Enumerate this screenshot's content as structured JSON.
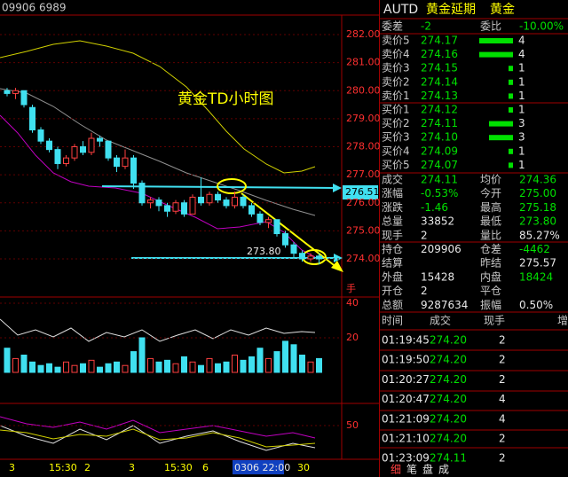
{
  "header": {
    "code": "09906 6989"
  },
  "chart": {
    "title": "黄金TD小时图",
    "yticks": [
      {
        "value": 282,
        "label": "282.00"
      },
      {
        "value": 281,
        "label": "281.00"
      },
      {
        "value": 280,
        "label": "280.00"
      },
      {
        "value": 279,
        "label": "279.00"
      },
      {
        "value": 278,
        "label": "278.00"
      },
      {
        "value": 277,
        "label": "277.00"
      },
      {
        "value": 276,
        "label": "276.00"
      },
      {
        "value": 275,
        "label": "275.00"
      },
      {
        "value": 274,
        "label": "274.00"
      }
    ],
    "candles": [
      {
        "open": 280.0,
        "close": 279.9,
        "high": 280.1,
        "low": 279.8
      },
      {
        "open": 279.9,
        "close": 280.0,
        "high": 280.1,
        "low": 279.7
      },
      {
        "open": 280.0,
        "close": 279.5,
        "high": 280.0,
        "low": 279.4
      },
      {
        "open": 279.4,
        "close": 278.6,
        "high": 279.5,
        "low": 278.5
      },
      {
        "open": 278.6,
        "close": 278.2,
        "high": 278.7,
        "low": 278.1
      },
      {
        "open": 278.2,
        "close": 277.9,
        "high": 278.3,
        "low": 277.8
      },
      {
        "open": 277.9,
        "close": 277.4,
        "high": 278.0,
        "low": 277.2
      },
      {
        "open": 277.4,
        "close": 277.6,
        "high": 277.7,
        "low": 277.3
      },
      {
        "open": 277.6,
        "close": 278.0,
        "high": 278.1,
        "low": 277.5
      },
      {
        "open": 278.0,
        "close": 277.8,
        "high": 278.2,
        "low": 277.7
      },
      {
        "open": 277.8,
        "close": 278.3,
        "high": 278.5,
        "low": 277.7
      },
      {
        "open": 278.3,
        "close": 278.2,
        "high": 278.4,
        "low": 278.0
      },
      {
        "open": 278.2,
        "close": 277.6,
        "high": 278.2,
        "low": 277.5
      },
      {
        "open": 277.6,
        "close": 277.3,
        "high": 277.7,
        "low": 277.1
      },
      {
        "open": 277.3,
        "close": 277.6,
        "high": 277.9,
        "low": 277.2
      },
      {
        "open": 277.6,
        "close": 276.7,
        "high": 277.7,
        "low": 276.5
      },
      {
        "open": 276.7,
        "close": 276.0,
        "high": 276.8,
        "low": 275.9
      },
      {
        "open": 276.0,
        "close": 276.1,
        "high": 276.2,
        "low": 275.8
      },
      {
        "open": 276.1,
        "close": 275.9,
        "high": 276.2,
        "low": 275.7
      },
      {
        "open": 275.9,
        "close": 275.7,
        "high": 276.0,
        "low": 275.5
      },
      {
        "open": 275.7,
        "close": 276.0,
        "high": 276.1,
        "low": 275.6
      },
      {
        "open": 276.0,
        "close": 275.6,
        "high": 276.1,
        "low": 275.5
      },
      {
        "open": 275.6,
        "close": 276.2,
        "high": 276.3,
        "low": 275.6
      },
      {
        "open": 276.2,
        "close": 276.0,
        "high": 276.9,
        "low": 275.9
      },
      {
        "open": 276.0,
        "close": 276.3,
        "high": 276.4,
        "low": 275.9
      },
      {
        "open": 276.3,
        "close": 276.1,
        "high": 276.4,
        "low": 276.0
      },
      {
        "open": 276.1,
        "close": 275.9,
        "high": 276.2,
        "low": 275.8
      },
      {
        "open": 275.9,
        "close": 276.2,
        "high": 276.4,
        "low": 275.8
      },
      {
        "open": 276.2,
        "close": 275.9,
        "high": 276.3,
        "low": 275.8
      },
      {
        "open": 275.9,
        "close": 275.6,
        "high": 276.0,
        "low": 275.5
      },
      {
        "open": 275.6,
        "close": 275.3,
        "high": 275.7,
        "low": 275.2
      },
      {
        "open": 275.3,
        "close": 275.4,
        "high": 275.5,
        "low": 275.1
      },
      {
        "open": 275.4,
        "close": 274.9,
        "high": 275.4,
        "low": 274.8
      },
      {
        "open": 274.9,
        "close": 274.5,
        "high": 275.0,
        "low": 274.4
      },
      {
        "open": 274.5,
        "close": 274.2,
        "high": 274.6,
        "low": 274.0
      },
      {
        "open": 274.2,
        "close": 274.0,
        "high": 274.3,
        "low": 273.9
      },
      {
        "open": 274.0,
        "close": 274.1,
        "high": 274.2,
        "low": 273.9
      },
      {
        "open": 274.1,
        "close": 274.0,
        "high": 274.2,
        "low": 273.8
      }
    ],
    "volume_unit": "手",
    "volume_ticks": [
      40,
      20
    ],
    "volumes": [
      14,
      8,
      10,
      6,
      4,
      5,
      3,
      6,
      4,
      5,
      7,
      3,
      5,
      6,
      4,
      12,
      20,
      8,
      6,
      7,
      5,
      9,
      6,
      4,
      8,
      5,
      6,
      10,
      7,
      9,
      14,
      8,
      12,
      18,
      16,
      10,
      6,
      8
    ],
    "indicator_ticks": [
      50
    ],
    "annotations": [
      "276.51",
      "273.80"
    ],
    "xlabels": [
      "3",
      "15:30",
      "2",
      "3",
      "15:30",
      "6",
      "0306 22:00",
      "30"
    ]
  },
  "quote": {
    "symbol": "AUTD",
    "name": "黄金延期",
    "alias": "黄金",
    "wei_cha": {
      "label": "委差",
      "value": "-2"
    },
    "wei_bi": {
      "label": "委比",
      "value": "-10.00%"
    },
    "asks": [
      {
        "label": "卖价5",
        "price": "274.17",
        "volume": 4
      },
      {
        "label": "卖价4",
        "price": "274.16",
        "volume": 4
      },
      {
        "label": "卖价3",
        "price": "274.15",
        "volume": 1
      },
      {
        "label": "卖价2",
        "price": "274.14",
        "volume": 1
      },
      {
        "label": "卖价1",
        "price": "274.13",
        "volume": 1
      }
    ],
    "bids": [
      {
        "label": "买价1",
        "price": "274.12",
        "volume": 1
      },
      {
        "label": "买价2",
        "price": "274.11",
        "volume": 3
      },
      {
        "label": "买价3",
        "price": "274.10",
        "volume": 3
      },
      {
        "label": "买价4",
        "price": "274.09",
        "volume": 1
      },
      {
        "label": "买价5",
        "price": "274.07",
        "volume": 1
      }
    ],
    "stats": [
      [
        "成交",
        "274.11",
        "均价",
        "274.36"
      ],
      [
        "涨幅",
        "-0.53%",
        "今开",
        "275.00"
      ],
      [
        "涨跌",
        "-1.46",
        "最高",
        "275.18"
      ],
      [
        "总量",
        "33852",
        "最低",
        "273.80"
      ],
      [
        "现手",
        "2",
        "量比",
        "85.27%"
      ],
      [
        "持仓",
        "209906",
        "仓差",
        "-4462"
      ],
      [
        "结算",
        "昨结",
        "275.57"
      ],
      [
        "外盘",
        "15428",
        "内盘",
        "18424"
      ],
      [
        "开仓",
        "2",
        "平仓"
      ],
      [
        "总额",
        "9287634",
        "振幅",
        "0.50%"
      ]
    ]
  },
  "trades": {
    "columns": [
      "时间",
      "成交",
      "现手",
      "增"
    ],
    "rows": [
      [
        "01:19:45",
        "274.20",
        "2"
      ],
      [
        "01:19:50",
        "274.20",
        "2"
      ],
      [
        "01:20:27",
        "274.20",
        "2"
      ],
      [
        "01:20:47",
        "274.20",
        "4"
      ],
      [
        "01:21:09",
        "274.20",
        "4"
      ],
      [
        "01:21:10",
        "274.20",
        "2"
      ],
      [
        "01:23:09",
        "274.11",
        "2"
      ]
    ]
  },
  "tabs": [
    "细",
    "笔",
    "盘",
    "成"
  ]
}
